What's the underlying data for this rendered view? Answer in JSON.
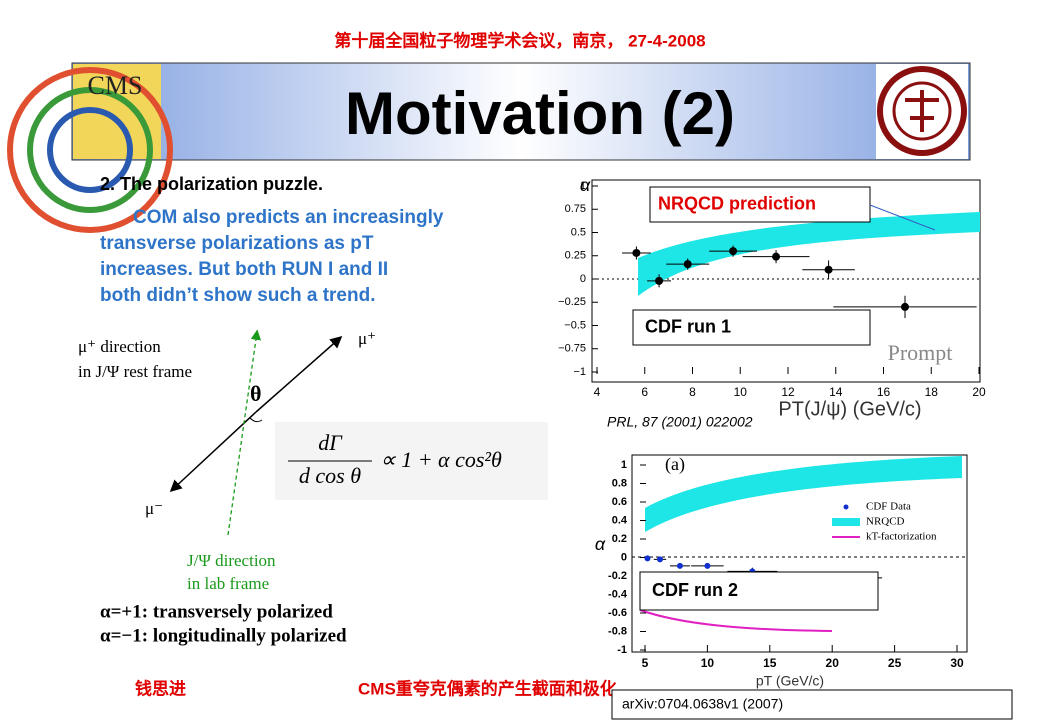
{
  "header": {
    "conference": "第十届全国粒子物理学术会议，南京， 27-4-2008",
    "title": "Motivation (2)",
    "cms_logo": "CMS"
  },
  "text": {
    "heading": "2. The polarization puzzle.",
    "paragraph": [
      "COM also predicts an increasingly",
      "transverse polarizations as pT",
      "increases.  But both  RUN I and II",
      "both didn’t show such a trend."
    ]
  },
  "diagram": {
    "rest_frame": [
      "μ⁺  direction",
      "in  J/Ψ  rest frame"
    ],
    "mu_plus": "μ⁺",
    "theta": "θ",
    "mu_minus": "μ⁻",
    "lab_frame": [
      "J/Ψ  direction",
      "in lab frame"
    ]
  },
  "formula": {
    "numerator": "dΓ",
    "denominator": "d cos θ",
    "rhs": "∝ 1 + α cos²θ"
  },
  "cases": [
    "α=+1: transversely polarized",
    "α=−1: longitudinally polarized"
  ],
  "plots": [
    {
      "ylabel": "α",
      "xlabel": "PT(J/ψ)  (GeV/c)",
      "tag": "Prompt",
      "callout": "NRQCD prediction",
      "box": "CDF run 1",
      "reference": "PRL, 87 (2001) 022002",
      "xlim": [
        4,
        20
      ],
      "ylim": [
        -1,
        1
      ],
      "xticks": [
        4,
        6,
        8,
        10,
        12,
        14,
        16,
        18,
        20
      ],
      "yticks": [
        1,
        0.75,
        0.5,
        0.25,
        0,
        {
          "value": -0.25,
          "label": "−0.25"
        },
        {
          "value": -0.5,
          "label": "−0.5"
        },
        {
          "value": -0.75,
          "label": "−0.75"
        },
        {
          "value": -1,
          "label": "−1"
        }
      ],
      "points": {
        "x": [
          5.65,
          6.6,
          7.8,
          9.7,
          11.5,
          13.7,
          16.9
        ],
        "y": [
          0.28,
          -0.02,
          0.16,
          0.3,
          0.24,
          0.1,
          -0.3
        ],
        "yerr": [
          0.07,
          0.07,
          0.06,
          0.06,
          0.07,
          0.1,
          0.12
        ],
        "xerr": [
          0.6,
          0.5,
          0.9,
          1,
          1.4,
          1.1,
          3
        ]
      }
    },
    {
      "ylabel": "α",
      "xlabel": "pT (GeV/c)",
      "tag": "(a)",
      "legend": [
        "CDF Data",
        "NRQCD",
        "kT-factorization"
      ],
      "box": "CDF run 2",
      "reference": "arXiv:0704.0638v1 (2007)",
      "xlim": [
        5,
        30
      ],
      "ylim": [
        -1,
        1
      ],
      "xticks": [
        5,
        10,
        15,
        20,
        25,
        30
      ],
      "yticks": [
        1,
        0.8,
        0.6,
        0.4,
        0.2,
        0,
        -0.2,
        -0.4,
        -0.6,
        -0.8,
        -1
      ],
      "points": {
        "x": [
          5.2,
          6.2,
          7.8,
          10,
          13.6,
          20
        ],
        "y": [
          -0.01,
          -0.02,
          -0.09,
          -0.09,
          -0.15,
          -0.22
        ],
        "yerr": [
          0.02,
          0.02,
          0.02,
          0.03,
          0.04,
          0.05
        ],
        "xerr": [
          0.2,
          0.5,
          0.8,
          1.3,
          2,
          4
        ]
      }
    }
  ],
  "footer": {
    "author": "钱思进",
    "talk": "CMS重夸克偶素的产生截面和极化"
  }
}
